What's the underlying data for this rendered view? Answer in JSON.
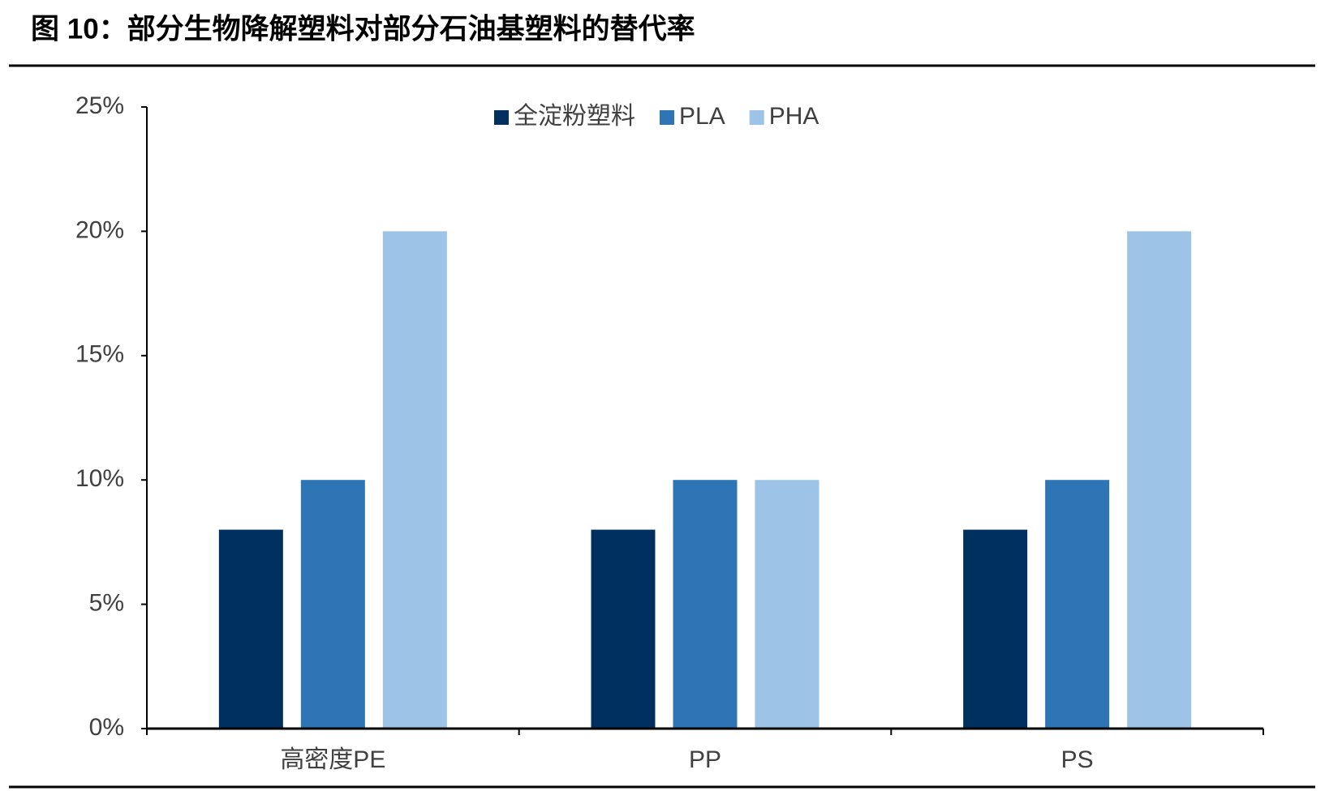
{
  "chart_data": {
    "type": "bar",
    "title": "图 10：部分生物降解塑料对部分石油基塑料的替代率",
    "categories": [
      "高密度PE",
      "PP",
      "PS"
    ],
    "series": [
      {
        "name": "全淀粉塑料",
        "color": "#003060",
        "values": [
          8,
          8,
          8
        ]
      },
      {
        "name": "PLA",
        "color": "#2e75b6",
        "values": [
          10,
          10,
          10
        ]
      },
      {
        "name": "PHA",
        "color": "#9dc3e6",
        "values": [
          20,
          10,
          20
        ]
      }
    ],
    "ylim": [
      0,
      25
    ],
    "yticks": [
      {
        "value": 0,
        "label": "0%"
      },
      {
        "value": 5,
        "label": "5%"
      },
      {
        "value": 10,
        "label": "10%"
      },
      {
        "value": 15,
        "label": "15%"
      },
      {
        "value": 20,
        "label": "20%"
      },
      {
        "value": 25,
        "label": "25%"
      }
    ],
    "legend": "top",
    "grid": false
  }
}
